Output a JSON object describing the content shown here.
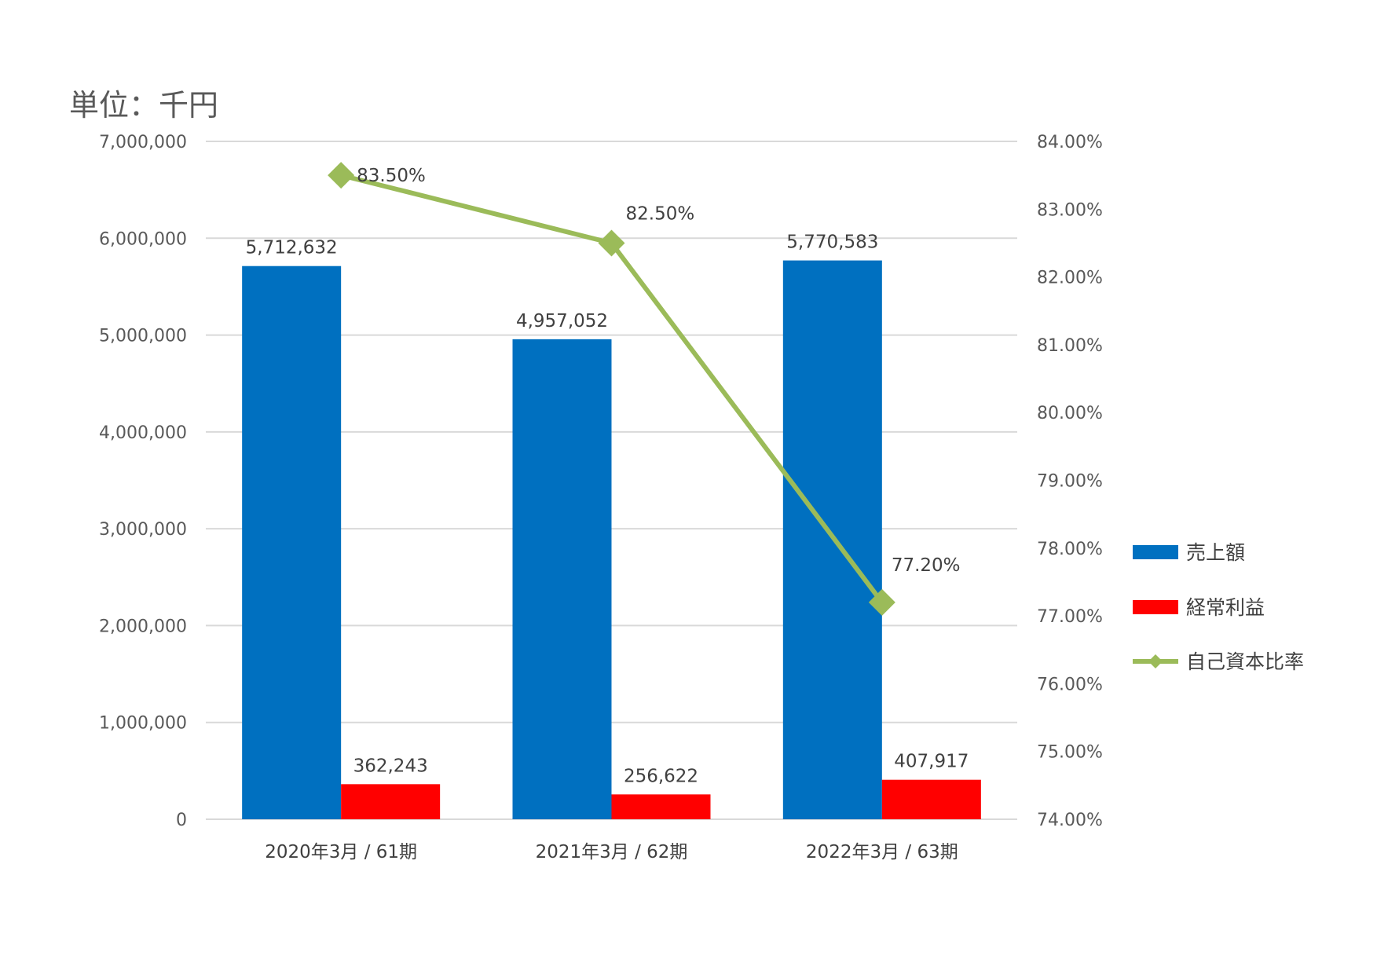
{
  "chart_data": {
    "type": "bar",
    "unit_label": "単位：千円",
    "categories": [
      "2020年3月 / 61期",
      "2021年3月 / 62期",
      "2022年3月 / 63期"
    ],
    "series": [
      {
        "name": "売上額",
        "type": "bar",
        "axis": "left",
        "color": "#0070c0",
        "values": [
          5712632,
          4957052,
          5770583
        ],
        "labels": [
          "5,712,632",
          "4,957,052",
          "5,770,583"
        ]
      },
      {
        "name": "経常利益",
        "type": "bar",
        "axis": "left",
        "color": "#ff0000",
        "values": [
          362243,
          256622,
          407917
        ],
        "labels": [
          "362,243",
          "256,622",
          "407,917"
        ]
      },
      {
        "name": "自己資本比率",
        "type": "line",
        "axis": "right",
        "color": "#9bbb59",
        "values": [
          83.5,
          82.5,
          77.2
        ],
        "labels": [
          "83.50%",
          "82.50%",
          "77.20%"
        ]
      }
    ],
    "y_left": {
      "ylim": [
        0,
        7000000
      ],
      "ticks": [
        "0",
        "1,000,000",
        "2,000,000",
        "3,000,000",
        "4,000,000",
        "5,000,000",
        "6,000,000",
        "7,000,000"
      ]
    },
    "y_right": {
      "ylim": [
        74,
        84
      ],
      "ticks": [
        "74.00%",
        "75.00%",
        "76.00%",
        "77.00%",
        "78.00%",
        "79.00%",
        "80.00%",
        "81.00%",
        "82.00%",
        "83.00%",
        "84.00%"
      ]
    },
    "grid": true,
    "legend_position": "right"
  }
}
